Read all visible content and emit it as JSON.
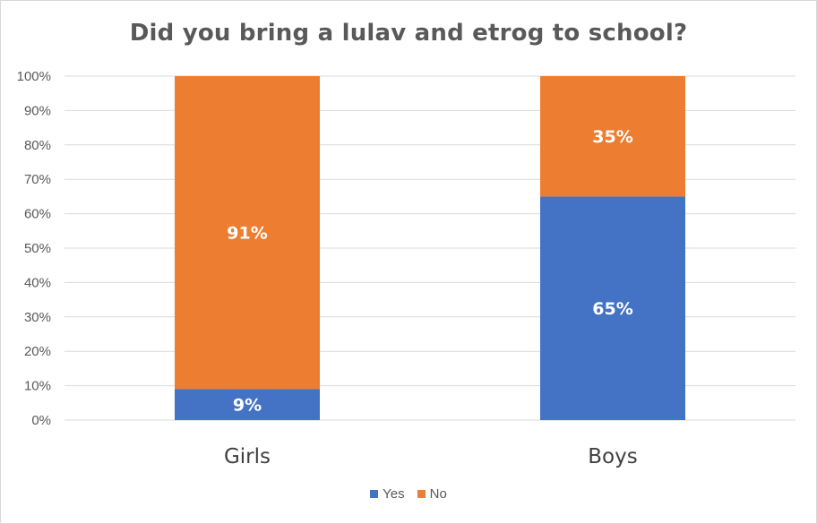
{
  "chart_data": {
    "type": "bar",
    "stacked": true,
    "title": "Did you bring a lulav and etrog to school?",
    "categories": [
      "Girls",
      "Boys"
    ],
    "series": [
      {
        "name": "Yes",
        "values": [
          9,
          65
        ],
        "labels": [
          "9%",
          "65%"
        ],
        "color": "#4472C4"
      },
      {
        "name": "No",
        "values": [
          91,
          35
        ],
        "labels": [
          "91%",
          "35%"
        ],
        "color": "#ED7D31"
      }
    ],
    "ylim": [
      0,
      100
    ],
    "yticks": [
      "0%",
      "10%",
      "20%",
      "30%",
      "40%",
      "50%",
      "60%",
      "70%",
      "80%",
      "90%",
      "100%"
    ],
    "grid": true,
    "legend": "bottom"
  }
}
